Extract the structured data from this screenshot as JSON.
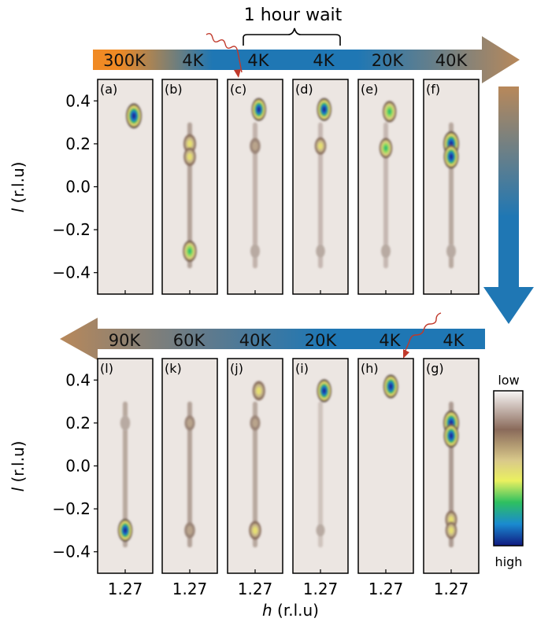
{
  "figure": {
    "wait_label": "1 hour wait",
    "axis_label_x_italic": "h",
    "axis_label_x_unit": " (r.l.u)",
    "axis_label_y_italic": "l",
    "axis_label_y_unit": " (r.l.u)",
    "colorbar_low": "low",
    "colorbar_high": "high",
    "top_temperatures": [
      "300K",
      "4K",
      "4K",
      "4K",
      "20K",
      "40K"
    ],
    "bottom_temperatures": [
      "90K",
      "60K",
      "40K",
      "20K",
      "4K",
      "4K"
    ],
    "x_tick": "1.27",
    "y_ticks": [
      "0.4",
      "0.2",
      "0.0",
      "−0.2",
      "−0.4"
    ],
    "colors": {
      "warm": "#f08a24",
      "cold": "#1f77b4",
      "arrow_brown": "#b8885a",
      "background": "#ece6e2",
      "stimulus": "#c0392b"
    }
  },
  "chart_data": {
    "type": "heatmap",
    "xlabel": "h (r.l.u)",
    "ylabel": "l (r.l.u)",
    "ylim": [
      -0.5,
      0.5
    ],
    "x_tick_value": 1.27,
    "colormap": "low (white) → brown → yellow → green → blue (high)",
    "panels": [
      {
        "label": "(a)",
        "temperature": "300K",
        "peaks": [
          {
            "l": 0.33,
            "intensity": 1.0,
            "dh": 0.35
          }
        ],
        "streak": 0.0
      },
      {
        "label": "(b)",
        "temperature": "4K",
        "peaks": [
          {
            "l": 0.2,
            "intensity": 0.6,
            "dh": 0.0
          },
          {
            "l": 0.14,
            "intensity": 0.55,
            "dh": 0.0
          },
          {
            "l": -0.3,
            "intensity": 0.75,
            "dh": 0.0
          }
        ],
        "streak": 0.35
      },
      {
        "label": "(c)",
        "temperature": "4K",
        "peaks": [
          {
            "l": 0.36,
            "intensity": 0.85,
            "dh": 0.15
          },
          {
            "l": 0.19,
            "intensity": 0.35,
            "dh": 0.0
          },
          {
            "l": -0.3,
            "intensity": 0.2,
            "dh": 0.0
          }
        ],
        "streak": 0.2
      },
      {
        "label": "(d)",
        "temperature": "4K",
        "peaks": [
          {
            "l": 0.36,
            "intensity": 0.85,
            "dh": 0.15
          },
          {
            "l": 0.19,
            "intensity": 0.45,
            "dh": 0.0
          },
          {
            "l": -0.3,
            "intensity": 0.15,
            "dh": 0.0
          }
        ],
        "streak": 0.15
      },
      {
        "label": "(e)",
        "temperature": "20K",
        "peaks": [
          {
            "l": 0.35,
            "intensity": 0.75,
            "dh": 0.15
          },
          {
            "l": 0.18,
            "intensity": 0.65,
            "dh": 0.0
          },
          {
            "l": -0.3,
            "intensity": 0.2,
            "dh": 0.0
          }
        ],
        "streak": 0.15
      },
      {
        "label": "(f)",
        "temperature": "40K",
        "peaks": [
          {
            "l": 0.2,
            "intensity": 1.0,
            "dh": 0.0
          },
          {
            "l": 0.14,
            "intensity": 0.9,
            "dh": 0.0
          },
          {
            "l": -0.3,
            "intensity": 0.2,
            "dh": 0.0
          }
        ],
        "streak": 0.3
      },
      {
        "label": "(g)",
        "temperature": "4K",
        "peaks": [
          {
            "l": 0.2,
            "intensity": 1.0,
            "dh": 0.0
          },
          {
            "l": 0.14,
            "intensity": 0.9,
            "dh": 0.0
          },
          {
            "l": -0.25,
            "intensity": 0.5,
            "dh": 0.0
          },
          {
            "l": -0.3,
            "intensity": 0.45,
            "dh": 0.0
          }
        ],
        "streak": 0.4
      },
      {
        "label": "(h)",
        "temperature": "4K",
        "peaks": [
          {
            "l": 0.37,
            "intensity": 0.9,
            "dh": 0.2
          }
        ],
        "streak": 0.0
      },
      {
        "label": "(i)",
        "temperature": "20K",
        "peaks": [
          {
            "l": 0.35,
            "intensity": 0.85,
            "dh": 0.15
          },
          {
            "l": -0.3,
            "intensity": 0.1,
            "dh": 0.0
          }
        ],
        "streak": 0.05
      },
      {
        "label": "(j)",
        "temperature": "40K",
        "peaks": [
          {
            "l": 0.35,
            "intensity": 0.6,
            "dh": 0.15
          },
          {
            "l": 0.2,
            "intensity": 0.3,
            "dh": 0.0
          },
          {
            "l": -0.3,
            "intensity": 0.55,
            "dh": 0.0
          }
        ],
        "streak": 0.3
      },
      {
        "label": "(k)",
        "temperature": "60K",
        "peaks": [
          {
            "l": 0.2,
            "intensity": 0.3,
            "dh": 0.0
          },
          {
            "l": -0.3,
            "intensity": 0.35,
            "dh": 0.0
          }
        ],
        "streak": 0.35
      },
      {
        "label": "(l)",
        "temperature": "90K",
        "peaks": [
          {
            "l": 0.2,
            "intensity": 0.25,
            "dh": 0.0
          },
          {
            "l": -0.3,
            "intensity": 0.85,
            "dh": 0.0
          }
        ],
        "streak": 0.3
      }
    ]
  }
}
